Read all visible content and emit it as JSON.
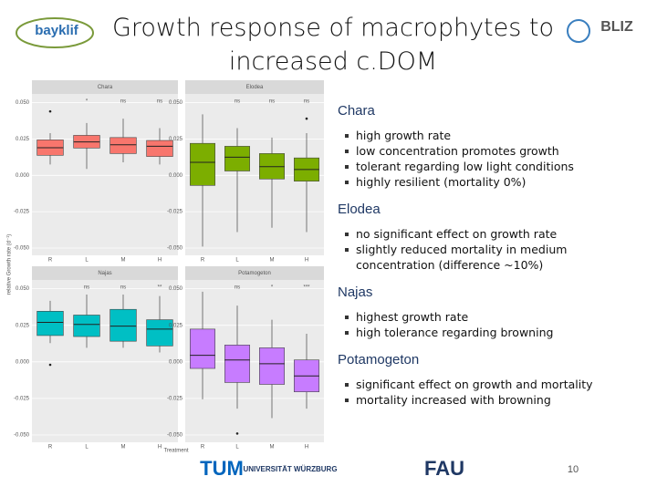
{
  "header": {
    "title": "Growth response of macrophytes to increased c.DOM",
    "logo_left": "bayklif",
    "logo_right": "BLIZ"
  },
  "figure": {
    "type": "box",
    "y_label": "relative Growth rate (d⁻¹)",
    "x_label": "Treatment",
    "categories": [
      "R",
      "L",
      "M",
      "H"
    ],
    "ylim": [
      -0.055,
      0.056
    ],
    "yticks": [
      {
        "value": 0.05,
        "label": "0.050"
      },
      {
        "value": 0.025,
        "label": "0.025"
      },
      {
        "value": 0,
        "label": "0.000"
      },
      {
        "value": -0.025,
        "label": "-0.025"
      },
      {
        "value": -0.05,
        "label": "-0.050"
      }
    ],
    "grid": true,
    "panels": [
      {
        "title": "Chara",
        "color": "#f8766d",
        "significance": [
          null,
          "*",
          "ns",
          "ns"
        ],
        "boxes": [
          {
            "low": 0.0075,
            "q1": 0.0138,
            "median": 0.019,
            "q3": 0.0244,
            "high": 0.029,
            "outliers": [
              0.044
            ]
          },
          {
            "low": 0.0044,
            "q1": 0.0188,
            "median": 0.023,
            "q3": 0.0275,
            "high": 0.036,
            "outliers": []
          },
          {
            "low": 0.009,
            "q1": 0.015,
            "median": 0.021,
            "q3": 0.026,
            "high": 0.039,
            "outliers": []
          },
          {
            "low": 0.0075,
            "q1": 0.013,
            "median": 0.02,
            "q3": 0.024,
            "high": 0.0325,
            "outliers": []
          }
        ]
      },
      {
        "title": "Elodea",
        "color": "#7cae00",
        "significance": [
          null,
          "ns",
          "ns",
          "ns"
        ],
        "boxes": [
          {
            "low": -0.049,
            "q1": -0.0069,
            "median": 0.009,
            "q3": 0.022,
            "high": 0.042,
            "outliers": []
          },
          {
            "low": -0.039,
            "q1": 0.003,
            "median": 0.0125,
            "q3": 0.02,
            "high": 0.0325,
            "outliers": []
          },
          {
            "low": -0.036,
            "q1": -0.0025,
            "median": 0.006,
            "q3": 0.015,
            "high": 0.026,
            "outliers": []
          },
          {
            "low": -0.039,
            "q1": -0.004,
            "median": 0.004,
            "q3": 0.012,
            "high": 0.029,
            "outliers": [
              0.039
            ]
          }
        ]
      },
      {
        "title": "Najas",
        "color": "#00bfc4",
        "significance": [
          null,
          "ns",
          "ns",
          "**"
        ],
        "boxes": [
          {
            "low": 0.0128,
            "q1": 0.018,
            "median": 0.027,
            "q3": 0.0346,
            "high": 0.0417,
            "outliers": [
              -0.002
            ]
          },
          {
            "low": 0.0096,
            "q1": 0.0173,
            "median": 0.0256,
            "q3": 0.032,
            "high": 0.046,
            "outliers": []
          },
          {
            "low": 0.0096,
            "q1": 0.0141,
            "median": 0.0244,
            "q3": 0.0359,
            "high": 0.046,
            "outliers": []
          },
          {
            "low": 0.0064,
            "q1": 0.0109,
            "median": 0.0224,
            "q3": 0.0288,
            "high": 0.045,
            "outliers": []
          }
        ]
      },
      {
        "title": "Potamogeton",
        "color": "#c77cff",
        "significance": [
          null,
          "ns",
          "*",
          "***"
        ],
        "boxes": [
          {
            "low": -0.0256,
            "q1": -0.0045,
            "median": 0.0045,
            "q3": 0.0224,
            "high": 0.048,
            "outliers": []
          },
          {
            "low": -0.032,
            "q1": -0.0141,
            "median": 0.0013,
            "q3": 0.0115,
            "high": 0.0385,
            "outliers": [
              -0.049
            ]
          },
          {
            "low": -0.0385,
            "q1": -0.0154,
            "median": -0.0013,
            "q3": 0.0096,
            "high": 0.0288,
            "outliers": []
          },
          {
            "low": -0.032,
            "q1": -0.0205,
            "median": -0.0096,
            "q3": 0.0013,
            "high": 0.0192,
            "outliers": []
          }
        ]
      }
    ]
  },
  "sections": [
    {
      "heading": "Chara",
      "bullets": [
        "high growth rate",
        "low concentration promotes growth",
        "tolerant regarding low light conditions",
        "highly resilient (mortality 0%)"
      ]
    },
    {
      "heading": "Elodea",
      "bullets": [
        "no significant effect on growth rate",
        "slightly reduced mortality in medium concentration (difference ~10%)"
      ]
    },
    {
      "heading": "Najas",
      "bullets": [
        "highest growth rate",
        "high tolerance regarding browning"
      ]
    },
    {
      "heading": "Potamogeton",
      "bullets": [
        "significant effect on growth and mortality",
        "mortality increased with browning"
      ]
    }
  ],
  "footer": {
    "logos": [
      "TUM",
      "UNIVERSITÄT WÜRZBURG",
      "FAU"
    ],
    "page_number": "10"
  }
}
